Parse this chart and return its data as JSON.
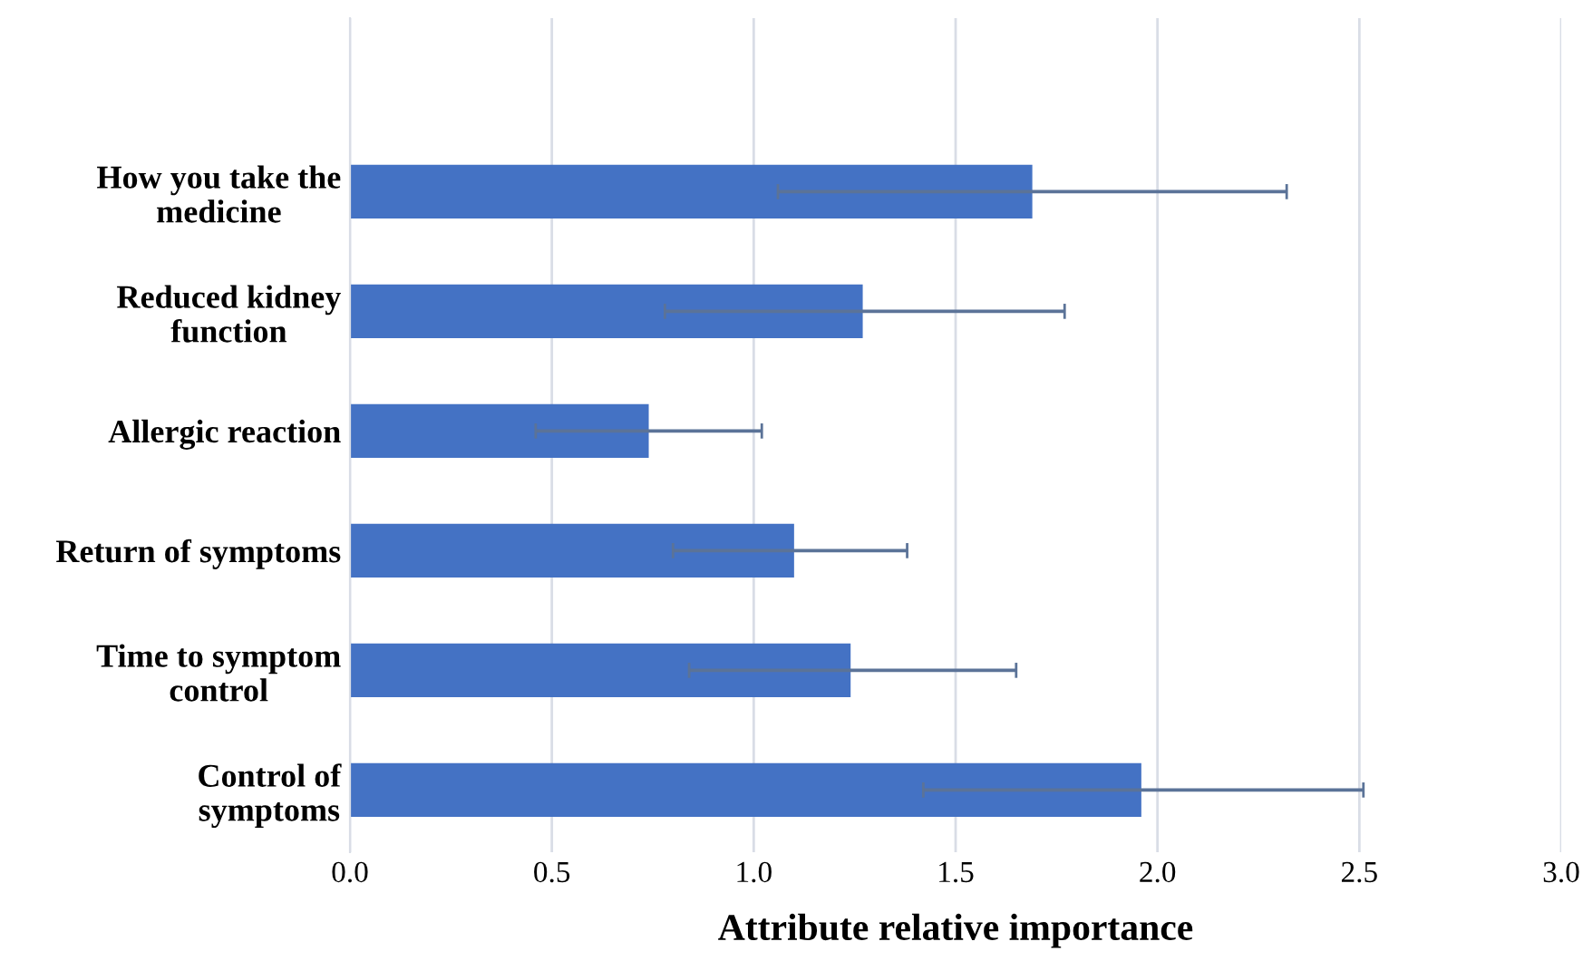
{
  "chart_data": {
    "type": "bar",
    "orientation": "horizontal",
    "xlabel": "Attribute relative importance",
    "categories": [
      "How you take the medicine",
      "Reduced kidney function",
      "Allergic reaction",
      "Return of symptoms",
      "Time to symptom control",
      "Control of symptoms"
    ],
    "values": [
      1.69,
      1.27,
      0.74,
      1.1,
      1.24,
      1.96
    ],
    "errors": [
      [
        1.06,
        2.32
      ],
      [
        0.78,
        1.77
      ],
      [
        0.46,
        1.02
      ],
      [
        0.8,
        1.38
      ],
      [
        0.84,
        1.65
      ],
      [
        1.42,
        2.51
      ]
    ],
    "color": "#4472c4",
    "xlim": [
      0,
      3
    ],
    "xticks": [
      {
        "value": 0,
        "label": "0.0"
      },
      {
        "value": 0.5,
        "label": "0.5"
      },
      {
        "value": 1,
        "label": "1.0"
      },
      {
        "value": 1.5,
        "label": "1.5"
      },
      {
        "value": 2,
        "label": "2.0"
      },
      {
        "value": 2.5,
        "label": "2.5"
      },
      {
        "value": 3,
        "label": "3.0"
      }
    ],
    "grid": "x"
  }
}
